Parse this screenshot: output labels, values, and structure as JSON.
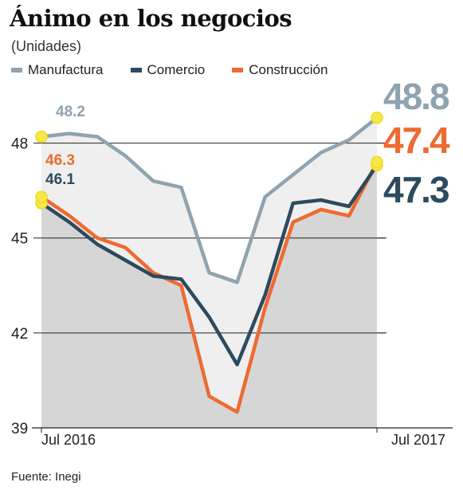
{
  "chart_data": {
    "type": "line",
    "title": "Ánimo en los negocios",
    "subtitle": "(Unidades)",
    "x_labels": [
      "Jul 2016",
      "Jul 2017"
    ],
    "ylim": [
      39,
      49.5
    ],
    "yticks": [
      39,
      42,
      45,
      48
    ],
    "source": "Fuente: Inegi",
    "series": [
      {
        "name": "Manufactura",
        "color": "#8fa3b0",
        "values": [
          48.2,
          48.3,
          48.2,
          47.6,
          46.8,
          46.6,
          43.9,
          43.6,
          46.3,
          47.0,
          47.7,
          48.1,
          48.8
        ]
      },
      {
        "name": "Comercio",
        "color": "#2d4a5e",
        "values": [
          46.1,
          45.5,
          44.8,
          44.3,
          43.8,
          43.7,
          42.5,
          41.0,
          43.2,
          46.1,
          46.2,
          46.0,
          47.3
        ]
      },
      {
        "name": "Construcción",
        "color": "#ee6a31",
        "values": [
          46.3,
          45.7,
          45.0,
          44.7,
          43.9,
          43.5,
          40.0,
          39.5,
          42.8,
          45.5,
          45.9,
          45.7,
          47.4
        ]
      }
    ],
    "start_labels": [
      {
        "series": "Manufactura",
        "text": "48.2"
      },
      {
        "series": "Construcción",
        "text": "46.3"
      },
      {
        "series": "Comercio",
        "text": "46.1"
      }
    ],
    "end_labels": [
      {
        "series": "Manufactura",
        "text": "48.8"
      },
      {
        "series": "Construcción",
        "text": "47.4"
      },
      {
        "series": "Comercio",
        "text": "47.3"
      }
    ],
    "grid": true,
    "legend": "top"
  }
}
